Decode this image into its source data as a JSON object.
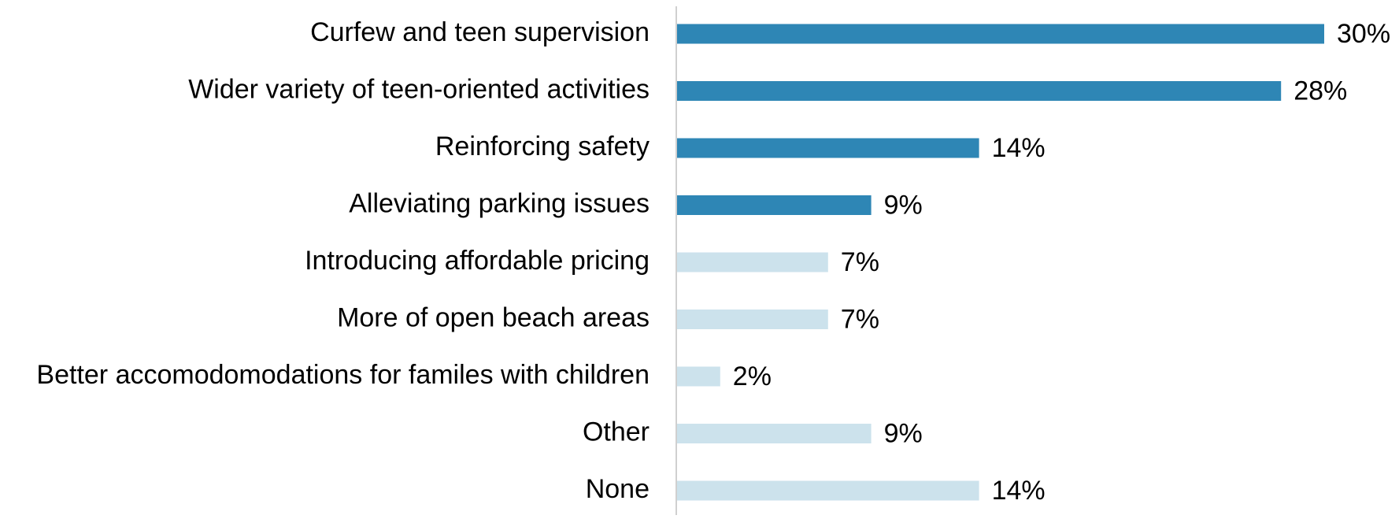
{
  "chart_data": {
    "type": "bar",
    "orientation": "horizontal",
    "categories": [
      "Curfew and teen supervision",
      "Wider variety of teen-oriented activities",
      "Reinforcing safety",
      "Alleviating parking issues",
      "Introducing affordable pricing",
      "More of open beach areas",
      "Better accomodomodations for familes with children",
      "Other",
      "None"
    ],
    "values": [
      30,
      28,
      14,
      9,
      7,
      7,
      2,
      9,
      14
    ],
    "value_labels": [
      "30%",
      "28%",
      "14%",
      "9%",
      "7%",
      "7%",
      "2%",
      "9%",
      "14%"
    ],
    "colors": [
      "#2e86b5",
      "#2e86b5",
      "#2e86b5",
      "#2e86b5",
      "#cce2ec",
      "#cce2ec",
      "#cce2ec",
      "#cce2ec",
      "#cce2ec"
    ]
  }
}
